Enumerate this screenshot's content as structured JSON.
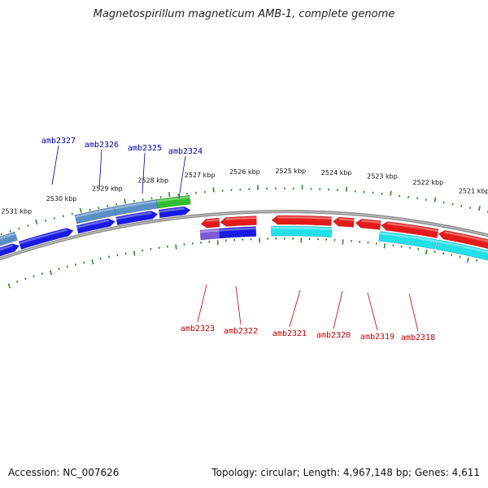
{
  "title": "Magnetospirillum magneticum AMB-1, complete genome",
  "footer": {
    "accession": "Accession: NC_007626",
    "summary": "Topology: circular; Length: 4,967,148 bp; Genes: 4,611"
  },
  "colors": {
    "tick": "#2a8a2a",
    "backbone": "#8a8a8a",
    "forward_gene": "#1a1ae6",
    "forward_cds": "#5b8fc7",
    "forward_rna": "#2fbf2f",
    "reverse_gene": "#e61a1a",
    "reverse_cds": "#22e0e8",
    "reverse_cds_alt": "#7a5ad8",
    "label_forward": "#00009a",
    "label_reverse": "#c00000"
  },
  "ruler_labels": [
    "2531 kbp",
    "2530 kbp",
    "2529 kbp",
    "2528 kbp",
    "2527 kbp",
    "2526 kbp",
    "2525 kbp",
    "2524 kbp",
    "2523 kbp",
    "2522 kbp",
    "2521 kbp"
  ],
  "forward_gene_labels": [
    "amb2327",
    "amb2326",
    "amb2325",
    "amb2324"
  ],
  "reverse_gene_labels": [
    "amb2323",
    "amb2322",
    "amb2321",
    "amb2320",
    "amb2319",
    "amb2318"
  ],
  "icons": {
    "forward_arrow": "arrow-right-icon",
    "reverse_arrow": "arrow-left-icon"
  }
}
